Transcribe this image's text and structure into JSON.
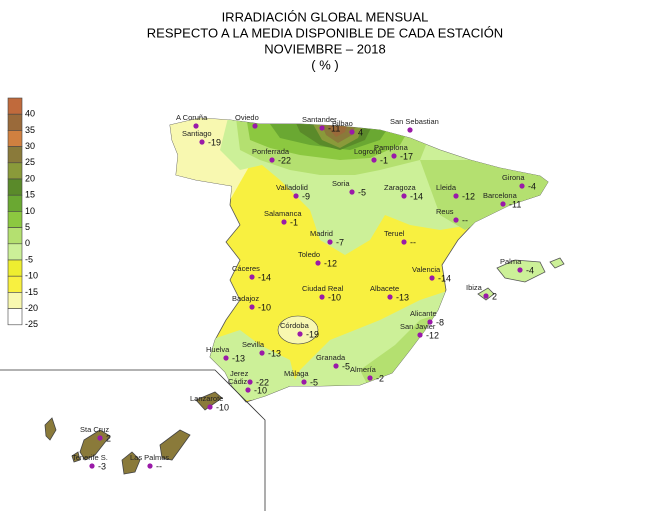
{
  "title_lines": [
    "IRRADIACIÓN GLOBAL MENSUAL",
    "RESPECTO A LA MEDIA DISPONIBLE DE CADA ESTACIÓN",
    "NOVIEMBRE – 2018",
    "( % )"
  ],
  "legend": {
    "items": [
      {
        "label": "40",
        "color": "#c06a3c"
      },
      {
        "label": "35",
        "color": "#9a6a3a"
      },
      {
        "label": "30",
        "color": "#d08040"
      },
      {
        "label": "25",
        "color": "#8a7a3a"
      },
      {
        "label": "20",
        "color": "#8a9a3a"
      },
      {
        "label": "15",
        "color": "#5a8a2a"
      },
      {
        "label": "10",
        "color": "#6aa832"
      },
      {
        "label": "5",
        "color": "#8cc840"
      },
      {
        "label": "0",
        "color": "#b4e070"
      },
      {
        "label": "-5",
        "color": "#ccf098"
      },
      {
        "label": "-10",
        "color": "#eeee30"
      },
      {
        "label": "-15",
        "color": "#f8f040"
      },
      {
        "label": "-20",
        "color": "#f8f8b0"
      },
      {
        "label": "-25",
        "color": "#ffffff"
      }
    ]
  },
  "stations": [
    {
      "name": "A Coruña",
      "value": ""
    },
    {
      "name": "Santiago",
      "value": "-19"
    },
    {
      "name": "Oviedo",
      "value": ""
    },
    {
      "name": "Ponferrada",
      "value": "-22"
    },
    {
      "name": "Santander",
      "value": "-11"
    },
    {
      "name": "Bilbao",
      "value": "4"
    },
    {
      "name": "San Sebastian",
      "value": ""
    },
    {
      "name": "Pamplona",
      "value": "-17"
    },
    {
      "name": "Logroño",
      "value": "-1"
    },
    {
      "name": "Valladolid",
      "value": "-9"
    },
    {
      "name": "Soria",
      "value": "-5"
    },
    {
      "name": "Zaragoza",
      "value": "-14"
    },
    {
      "name": "Lleida",
      "value": "-12"
    },
    {
      "name": "Girona",
      "value": "-4"
    },
    {
      "name": "Barcelona",
      "value": "-11"
    },
    {
      "name": "Reus",
      "value": "--"
    },
    {
      "name": "Salamanca",
      "value": "-1"
    },
    {
      "name": "Madrid",
      "value": "-7"
    },
    {
      "name": "Teruel",
      "value": "--"
    },
    {
      "name": "Toledo",
      "value": "-12"
    },
    {
      "name": "Valencia",
      "value": "-14"
    },
    {
      "name": "Palma",
      "value": "-4"
    },
    {
      "name": "Ibiza",
      "value": "2"
    },
    {
      "name": "Cáceres",
      "value": "-14"
    },
    {
      "name": "Ciudad Real",
      "value": "-10"
    },
    {
      "name": "Albacete",
      "value": "-13"
    },
    {
      "name": "Badajoz",
      "value": "-10"
    },
    {
      "name": "Alicante",
      "value": "-8"
    },
    {
      "name": "San Javier",
      "value": "-12"
    },
    {
      "name": "Córdoba",
      "value": "-19"
    },
    {
      "name": "Huelva",
      "value": "-13"
    },
    {
      "name": "Sevilla",
      "value": "-13"
    },
    {
      "name": "Granada",
      "value": "-5"
    },
    {
      "name": "Almería",
      "value": "-2"
    },
    {
      "name": "Málaga",
      "value": "-5"
    },
    {
      "name": "Jerez",
      "value": "-22"
    },
    {
      "name": "Cádiz",
      "value": "-10"
    },
    {
      "name": "Lanzarote",
      "value": "-10"
    },
    {
      "name": "Sta Cruz",
      "value": "2"
    },
    {
      "name": "Tenerife S.",
      "value": "-3"
    },
    {
      "name": "Las Palmas",
      "value": "--"
    }
  ]
}
